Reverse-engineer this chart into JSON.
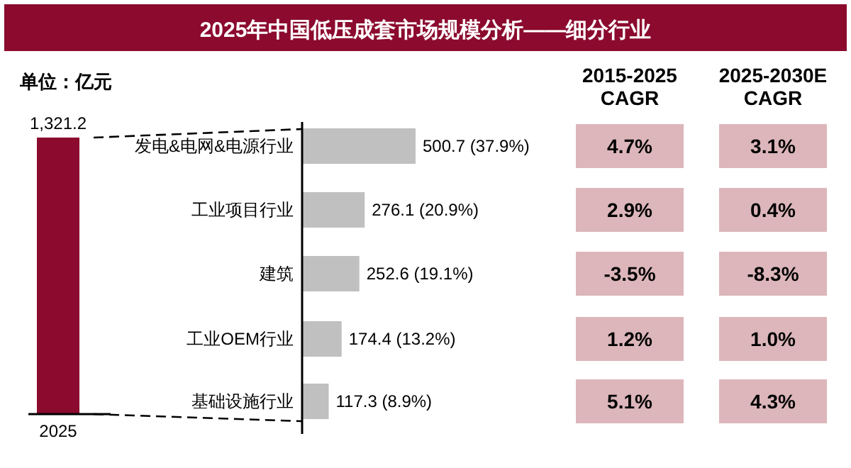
{
  "chart_data": [
    {
      "type": "bar",
      "subtitle": "单位：亿元",
      "categories": [
        "2025"
      ],
      "values": [
        1321.2
      ],
      "value_labels": [
        "1,321.2"
      ],
      "color": "#8b0a2e"
    },
    {
      "type": "bar",
      "title": "2025年中国低压成套市场规模分析——细分行业",
      "orientation": "horizontal",
      "categories": [
        "发电&电网&电源行业",
        "工业项目行业",
        "建筑",
        "工业OEM行业",
        "基础设施行业"
      ],
      "values": [
        500.7,
        276.1,
        252.6,
        174.4,
        117.3
      ],
      "value_labels": [
        "500.7 (37.9%)",
        "276.1 (20.9%)",
        "252.6 (19.1%)",
        "174.4 (13.2%)",
        "117.3 (8.9%)"
      ],
      "color": "#c0c0c0"
    },
    {
      "type": "other",
      "categories": [
        "2015-2025 CAGR",
        "2025-2030E CAGR"
      ],
      "annotations": [
        "4.7%",
        "3.1%",
        "2.9%",
        "0.4%",
        "-3.5%",
        "-8.3%",
        "1.2%",
        "1.0%",
        "5.1%",
        "4.3%"
      ],
      "color": "#dcb6ba"
    }
  ]
}
